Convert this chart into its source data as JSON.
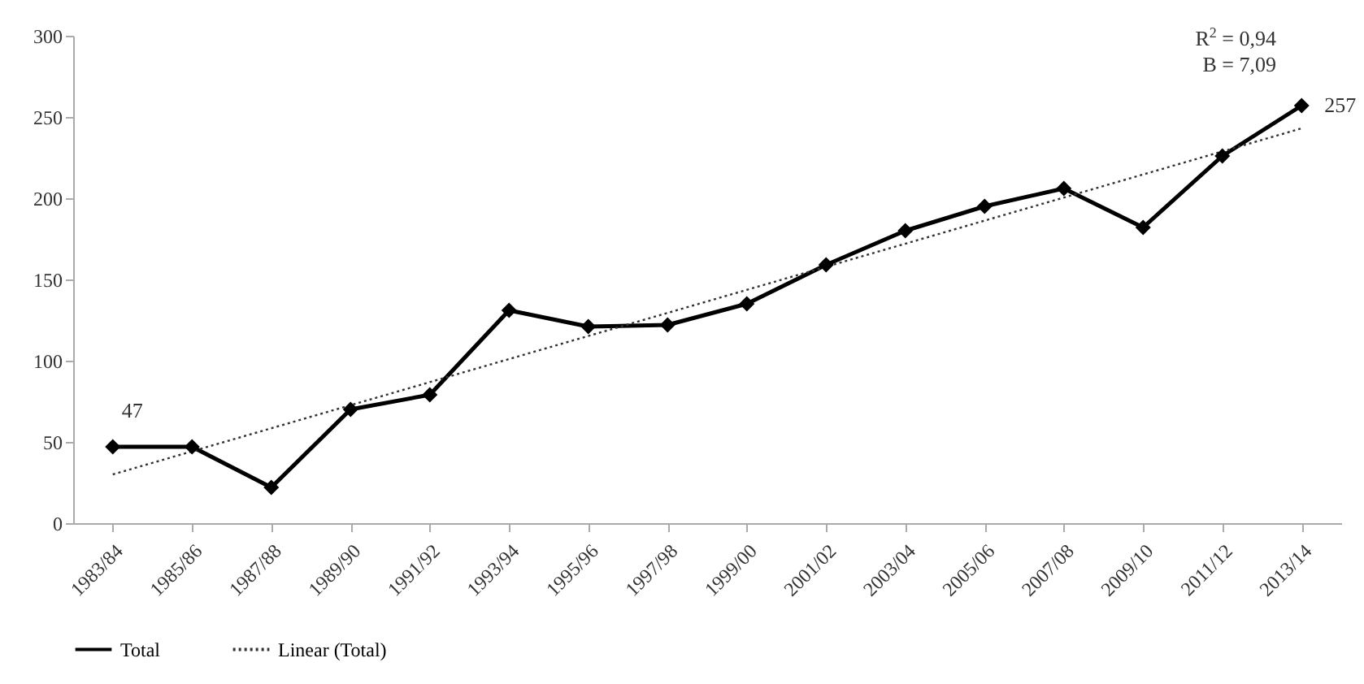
{
  "chart_data": {
    "type": "line",
    "categories": [
      "1983/84",
      "1985/86",
      "1987/88",
      "1989/90",
      "1991/92",
      "1993/94",
      "1995/96",
      "1997/98",
      "1999/00",
      "2001/02",
      "2003/04",
      "2005/06",
      "2007/08",
      "2009/10",
      "2011/12",
      "2013/14"
    ],
    "series": [
      {
        "name": "Total",
        "color": "#000000",
        "marker": "diamond",
        "line_style": "solid",
        "values": [
          47,
          47,
          22,
          70,
          79,
          131,
          121,
          122,
          135,
          159,
          180,
          195,
          206,
          182,
          226,
          257
        ],
        "value_labels": [
          "47",
          null,
          null,
          null,
          null,
          null,
          null,
          null,
          null,
          null,
          null,
          null,
          null,
          null,
          null,
          "257"
        ]
      },
      {
        "name": "Linear (Total)",
        "type": "line",
        "color": "#333333",
        "marker": "none",
        "line_style": "dotted",
        "x": [
          "1983/84",
          "2013/14"
        ],
        "values": [
          30,
          243
        ]
      }
    ],
    "ylim": [
      0,
      300
    ],
    "yticks": [
      0,
      50,
      100,
      150,
      200,
      250,
      300
    ],
    "grid": false,
    "legend": "bottom",
    "annotations": [
      "R$^{2}$ = 0,94",
      "B = 7,09"
    ]
  }
}
